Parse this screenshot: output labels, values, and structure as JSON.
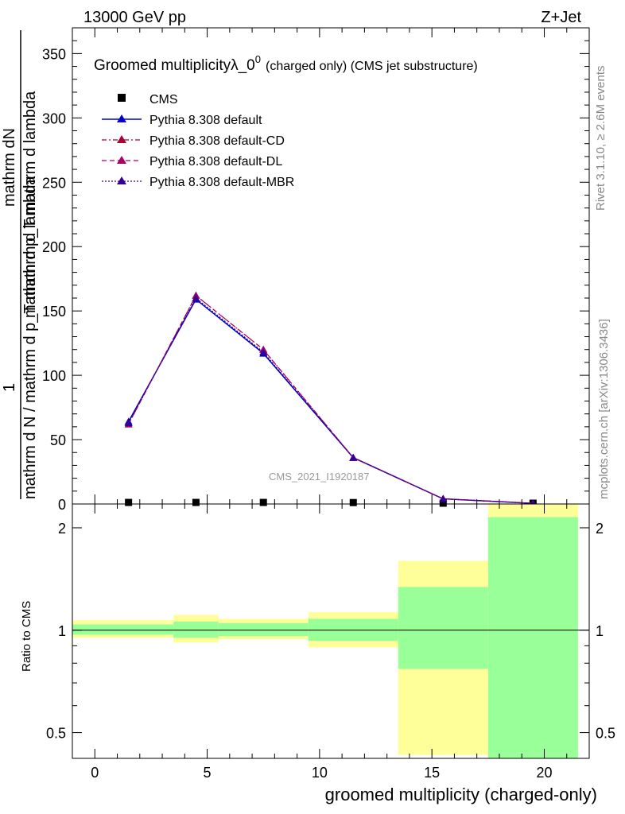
{
  "header": {
    "left": "13000 GeV pp",
    "right": "Z+Jet"
  },
  "side": {
    "rivet": "Rivet 3.1.10, ≥ 2.6M events",
    "mcplots": "mcplots.cern.ch [arXiv:1306.3436]"
  },
  "plot": {
    "title_main": "Groomed multiplicityλ_0",
    "title_sup": "0",
    "title_small": "(charged only) (CMS jet substructure)",
    "watermark": "CMS_2021_I1920187",
    "ylabel_num": "1",
    "ylabel_den": "mathrm d N / mathrm d p_T mathrm d lambda",
    "ylabel_frac_num": "mathrm dN",
    "ylabel_frac_den": "mathrm d p_T mathrm d lambda",
    "ylabel_sub": "T",
    "ratio_ylabel": "Ratio to CMS",
    "xlabel": "groomed multiplicity (charged-only)"
  },
  "colors": {
    "cms": "#000000",
    "default": "#0000cc",
    "cd": "#aa0033",
    "dl": "#aa0066",
    "mbr": "#330099",
    "band_outer": "#ffff99",
    "band_inner": "#99ff99"
  },
  "chart_data": {
    "type": "line",
    "xlim": [
      -1,
      22
    ],
    "main_ylim": [
      0,
      370
    ],
    "ratio_ylim": [
      0.42,
      2.35
    ],
    "ratio_scale": "log",
    "x_ticks": [
      0,
      5,
      10,
      15,
      20
    ],
    "main_y_ticks": [
      50,
      100,
      150,
      200,
      250,
      300,
      350
    ],
    "ratio_y_ticks": [
      0.5,
      1,
      2
    ],
    "x": [
      1.5,
      4.5,
      7.5,
      11.5,
      15.5,
      19.5
    ],
    "bins": [
      [
        -1,
        3.5
      ],
      [
        3.5,
        5.5
      ],
      [
        5.5,
        9.5
      ],
      [
        9.5,
        13.5
      ],
      [
        13.5,
        17.5
      ],
      [
        17.5,
        21.5
      ]
    ],
    "legend": [
      {
        "key": "cms",
        "label": "CMS"
      },
      {
        "key": "default",
        "label": "Pythia 8.308 default"
      },
      {
        "key": "cd",
        "label": "Pythia 8.308 default-CD"
      },
      {
        "key": "dl",
        "label": "Pythia 8.308 default-DL"
      },
      {
        "key": "mbr",
        "label": "Pythia 8.308 default-MBR"
      }
    ],
    "series": [
      {
        "key": "cms",
        "name": "CMS",
        "values": [
          1.2,
          1.2,
          1.2,
          1.1,
          0.3,
          0.2
        ]
      },
      {
        "key": "default",
        "name": "Pythia 8.308 default",
        "values": [
          64,
          159,
          117,
          36,
          4,
          0.5
        ]
      },
      {
        "key": "cd",
        "name": "Pythia 8.308 default-CD",
        "values": [
          62,
          162,
          120,
          36,
          4,
          0.5
        ]
      },
      {
        "key": "dl",
        "name": "Pythia 8.308 default-DL",
        "values": [
          62,
          162,
          120,
          36,
          4,
          0.5
        ]
      },
      {
        "key": "mbr",
        "name": "Pythia 8.308 default-MBR",
        "values": [
          63,
          160,
          118,
          36,
          4,
          0.5
        ]
      }
    ],
    "ratio_bands": {
      "outer": [
        [
          0.95,
          1.07
        ],
        [
          0.92,
          1.11
        ],
        [
          0.94,
          1.08
        ],
        [
          0.89,
          1.13
        ],
        [
          0.43,
          1.6
        ],
        [
          0.4,
          2.35
        ]
      ],
      "inner": [
        [
          0.97,
          1.04
        ],
        [
          0.95,
          1.06
        ],
        [
          0.96,
          1.05
        ],
        [
          0.93,
          1.08
        ],
        [
          0.77,
          1.34
        ],
        [
          0.4,
          2.15
        ]
      ]
    },
    "ratio_reference": 1
  }
}
